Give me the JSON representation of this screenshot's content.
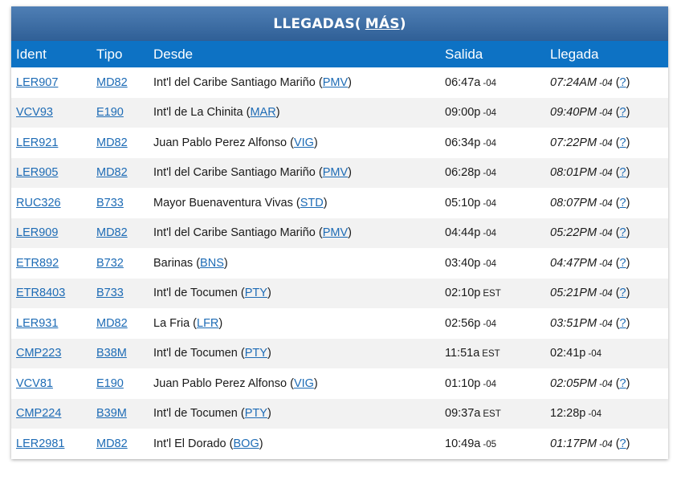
{
  "header": {
    "title": "LLEGADAS",
    "more_label": "MÁS"
  },
  "columns": [
    "Ident",
    "Tipo",
    "Desde",
    "Salida",
    "Llegada"
  ],
  "rows": [
    {
      "ident": "LER907",
      "tipo": "MD82",
      "from": "Int'l del Caribe Santiago Mariño",
      "code": "PMV",
      "dep": "06:47a",
      "dep_tz": "-04",
      "arr": "07:24AM",
      "arr_tz": "-04",
      "q": "?"
    },
    {
      "ident": "VCV93",
      "tipo": "E190",
      "from": "Int'l de La Chinita",
      "code": "MAR",
      "dep": "09:00p",
      "dep_tz": "-04",
      "arr": "09:40PM",
      "arr_tz": "-04",
      "q": "?"
    },
    {
      "ident": "LER921",
      "tipo": "MD82",
      "from": "Juan Pablo Perez Alfonso",
      "code": "VIG",
      "dep": "06:34p",
      "dep_tz": "-04",
      "arr": "07:22PM",
      "arr_tz": "-04",
      "q": "?"
    },
    {
      "ident": "LER905",
      "tipo": "MD82",
      "from": "Int'l del Caribe Santiago Mariño",
      "code": "PMV",
      "dep": "06:28p",
      "dep_tz": "-04",
      "arr": "08:01PM",
      "arr_tz": "-04",
      "q": "?"
    },
    {
      "ident": "RUC326",
      "tipo": "B733",
      "from": "Mayor Buenaventura Vivas",
      "code": "STD",
      "dep": "05:10p",
      "dep_tz": "-04",
      "arr": "08:07PM",
      "arr_tz": "-04",
      "q": "?"
    },
    {
      "ident": "LER909",
      "tipo": "MD82",
      "from": "Int'l del Caribe Santiago Mariño",
      "code": "PMV",
      "dep": "04:44p",
      "dep_tz": "-04",
      "arr": "05:22PM",
      "arr_tz": "-04",
      "q": "?"
    },
    {
      "ident": "ETR892",
      "tipo": "B732",
      "from": "Barinas",
      "code": "BNS",
      "dep": "03:40p",
      "dep_tz": "-04",
      "arr": "04:47PM",
      "arr_tz": "-04",
      "q": "?"
    },
    {
      "ident": "ETR8403",
      "tipo": "B733",
      "from": "Int'l de Tocumen",
      "code": "PTY",
      "dep": "02:10p",
      "dep_tz": "EST",
      "arr": "05:21PM",
      "arr_tz": "-04",
      "q": "?"
    },
    {
      "ident": "LER931",
      "tipo": "MD82",
      "from": "La Fria",
      "code": "LFR",
      "dep": "02:56p",
      "dep_tz": "-04",
      "arr": "03:51PM",
      "arr_tz": "-04",
      "q": "?"
    },
    {
      "ident": "CMP223",
      "tipo": "B38M",
      "from": "Int'l de Tocumen",
      "code": "PTY",
      "dep": "11:51a",
      "dep_tz": "EST",
      "arr": "02:41p",
      "arr_tz": "-04",
      "q": ""
    },
    {
      "ident": "VCV81",
      "tipo": "E190",
      "from": "Juan Pablo Perez Alfonso",
      "code": "VIG",
      "dep": "01:10p",
      "dep_tz": "-04",
      "arr": "02:05PM",
      "arr_tz": "-04",
      "q": "?"
    },
    {
      "ident": "CMP224",
      "tipo": "B39M",
      "from": "Int'l de Tocumen",
      "code": "PTY",
      "dep": "09:37a",
      "dep_tz": "EST",
      "arr": "12:28p",
      "arr_tz": "-04",
      "q": ""
    },
    {
      "ident": "LER2981",
      "tipo": "MD82",
      "from": "Int'l El Dorado",
      "code": "BOG",
      "dep": "10:49a",
      "dep_tz": "-05",
      "arr": "01:17PM",
      "arr_tz": "-04",
      "q": "?"
    }
  ]
}
